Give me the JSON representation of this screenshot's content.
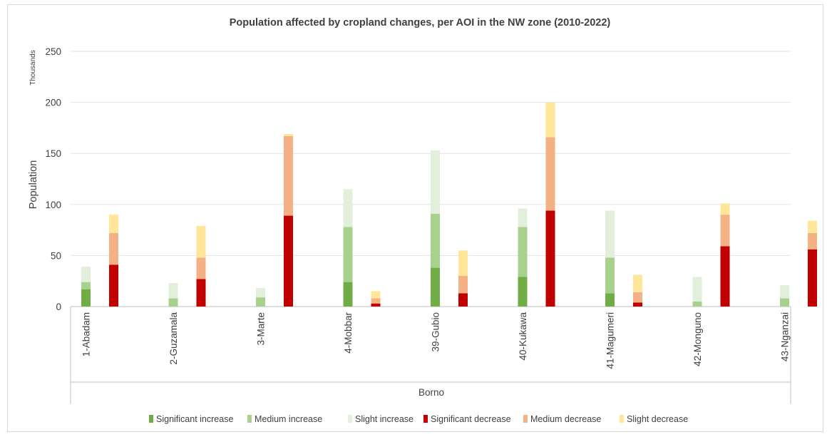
{
  "chart_data": {
    "type": "bar",
    "stacked": true,
    "title": "Population affected  by cropland  changes, per AOI in the NW zone (2010-2022)",
    "ylabel": "Population",
    "yunit": "Thousands",
    "xgroup_label": "Borno",
    "ylim": [
      0,
      250
    ],
    "yticks": [
      0,
      50,
      100,
      150,
      200,
      250
    ],
    "grid": true,
    "legend_position": "bottom",
    "categories": [
      "1-Abadam",
      "2-Guzamala",
      "3-Marte",
      "4-Mobbar",
      "39-Gubio",
      "40-Kukawa",
      "41-Magumeri",
      "42-Monguno",
      "43-Nganzai"
    ],
    "increase_series": [
      {
        "name": "Significant increase",
        "color": "#70ad47",
        "values": [
          17,
          0,
          0,
          24,
          38,
          29,
          13,
          0,
          0
        ]
      },
      {
        "name": "Medium increase",
        "color": "#a9d18e",
        "values": [
          7,
          8,
          9,
          54,
          53,
          49,
          35,
          5,
          8
        ]
      },
      {
        "name": "Slight increase",
        "color": "#e2efda",
        "values": [
          15,
          15,
          9,
          37,
          62,
          18,
          46,
          24,
          13
        ]
      }
    ],
    "decrease_series": [
      {
        "name": "Significant decrease",
        "color": "#c00000",
        "values": [
          41,
          27,
          89,
          3,
          13,
          94,
          4,
          59,
          56
        ]
      },
      {
        "name": "Medium decrease",
        "color": "#f4b183",
        "values": [
          31,
          21,
          78,
          5,
          17,
          72,
          10,
          31,
          16
        ]
      },
      {
        "name": "Slight decrease",
        "color": "#ffe699",
        "values": [
          18,
          31,
          2,
          7,
          25,
          34,
          17,
          11,
          12
        ]
      }
    ]
  }
}
